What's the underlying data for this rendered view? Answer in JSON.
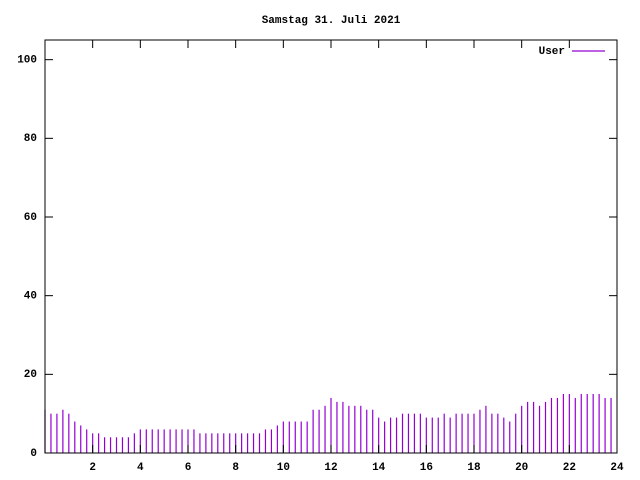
{
  "chart_data": {
    "type": "impulse",
    "title": "Samstag 31. Juli 2021",
    "x": [
      0,
      0.25,
      0.5,
      0.75,
      1,
      1.25,
      1.5,
      1.75,
      2,
      2.25,
      2.5,
      2.75,
      3,
      3.25,
      3.5,
      3.75,
      4,
      4.25,
      4.5,
      4.75,
      5,
      5.25,
      5.5,
      5.75,
      6,
      6.25,
      6.5,
      6.75,
      7,
      7.25,
      7.5,
      7.75,
      8,
      8.25,
      8.5,
      8.75,
      9,
      9.25,
      9.5,
      9.75,
      10,
      10.25,
      10.5,
      10.75,
      11,
      11.25,
      11.5,
      11.75,
      12,
      12.25,
      12.5,
      12.75,
      13,
      13.25,
      13.5,
      13.75,
      14,
      14.25,
      14.5,
      14.75,
      15,
      15.25,
      15.5,
      15.75,
      16,
      16.25,
      16.5,
      16.75,
      17,
      17.25,
      17.5,
      17.75,
      18,
      18.25,
      18.5,
      18.75,
      19,
      19.25,
      19.5,
      19.75,
      20,
      20.25,
      20.5,
      20.75,
      21,
      21.25,
      21.5,
      21.75,
      22,
      22.25,
      22.5,
      22.75,
      23,
      23.25,
      23.5,
      23.75
    ],
    "series": [
      {
        "name": "User",
        "color": "#9400d3",
        "values": [
          11,
          10,
          10,
          11,
          10,
          8,
          7,
          6,
          5,
          5,
          4,
          4,
          4,
          4,
          4,
          5,
          6,
          6,
          6,
          6,
          6,
          6,
          6,
          6,
          6,
          6,
          5,
          5,
          5,
          5,
          5,
          5,
          5,
          5,
          5,
          5,
          5,
          6,
          6,
          7,
          8,
          8,
          8,
          8,
          8,
          11,
          11,
          12,
          14,
          13,
          13,
          12,
          12,
          12,
          11,
          11,
          9,
          8,
          9,
          9,
          10,
          10,
          10,
          10,
          9,
          9,
          9,
          10,
          9,
          10,
          10,
          10,
          10,
          11,
          12,
          10,
          10,
          9,
          8,
          10,
          12,
          13,
          13,
          12,
          13,
          14,
          14,
          15,
          15,
          14,
          15,
          15,
          15,
          15,
          14,
          14
        ]
      }
    ],
    "xlim": [
      0,
      24
    ],
    "xticks": [
      2,
      4,
      6,
      8,
      10,
      12,
      14,
      16,
      18,
      20,
      22,
      24
    ],
    "ylim": [
      0,
      105
    ],
    "yticks": [
      0,
      20,
      40,
      60,
      80,
      100
    ],
    "legend": "top-right"
  }
}
